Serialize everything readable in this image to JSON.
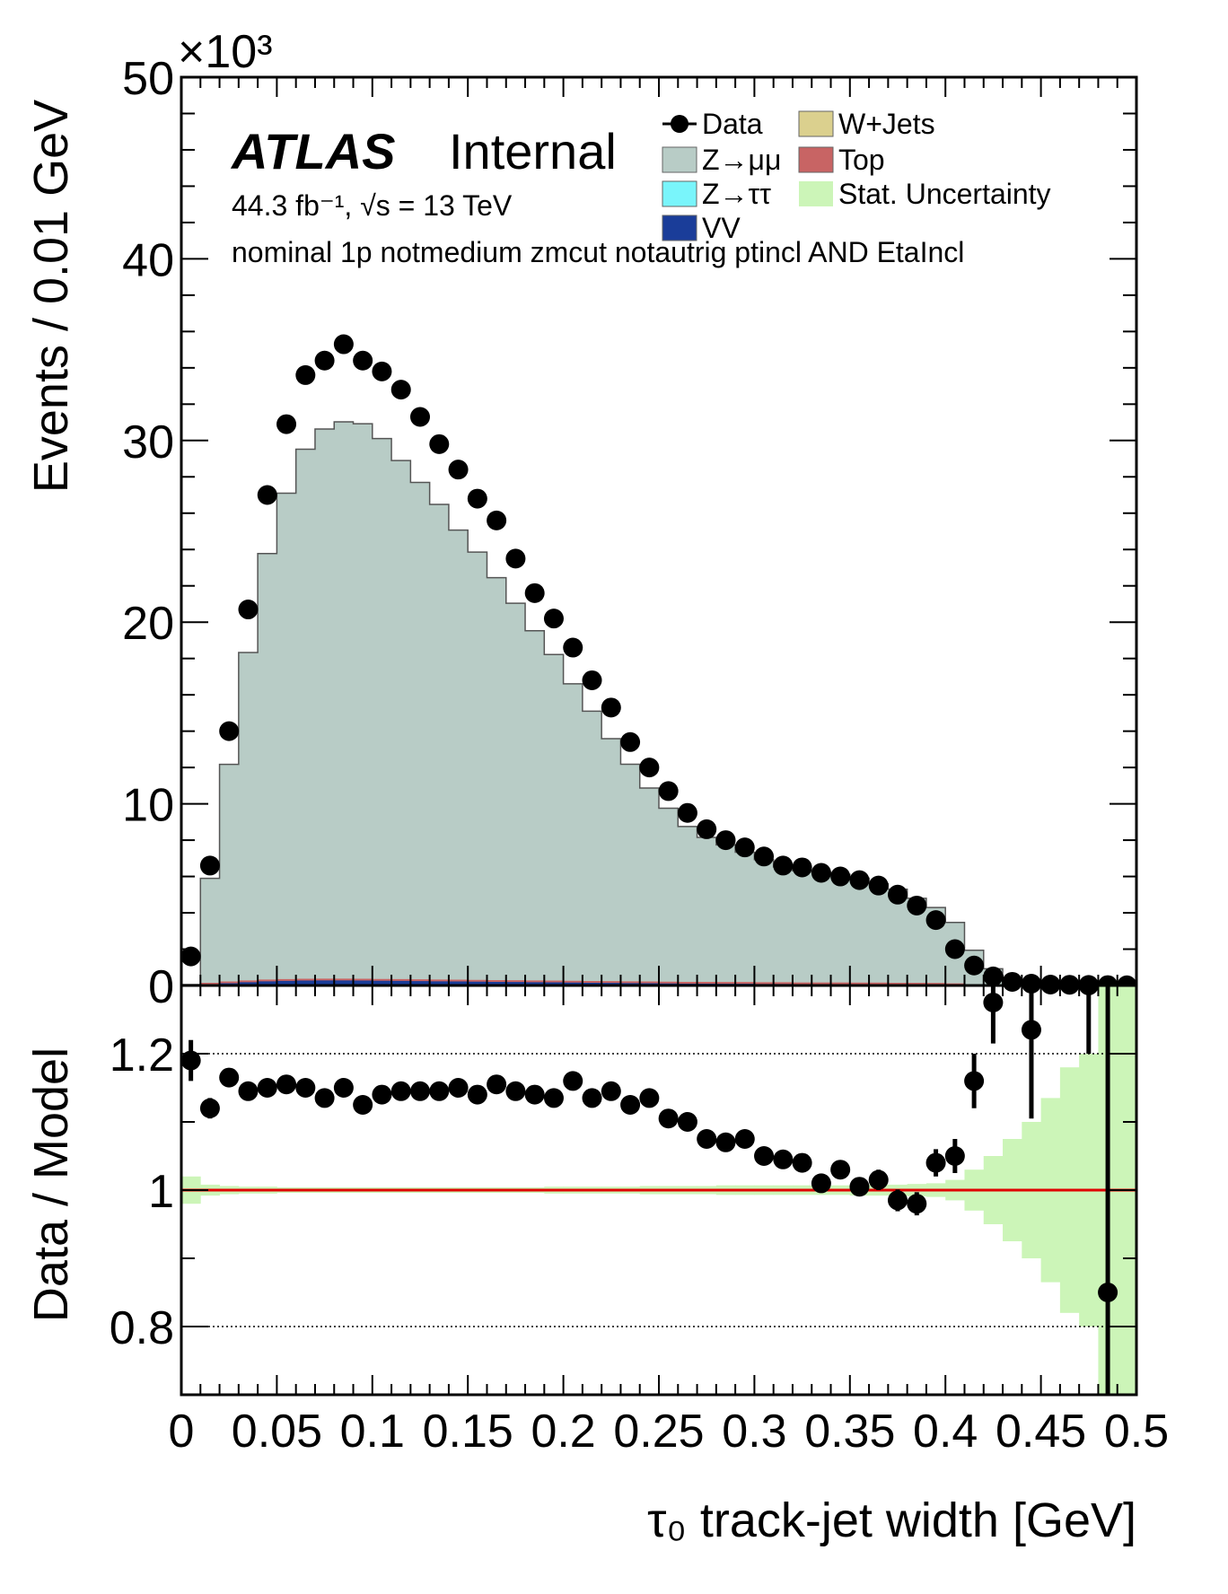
{
  "chart_data": [
    {
      "type": "histogram",
      "panel": "main",
      "exponent_label": "×10³",
      "ylabel": "Events / 0.01 GeV",
      "ylim": [
        0,
        50
      ],
      "yticks": [
        "0",
        "10",
        "20",
        "30",
        "40",
        "50"
      ],
      "xlim": [
        0,
        0.5
      ],
      "bin_width": 0.01,
      "atlas_label": "ATLAS",
      "atlas_status": "Internal",
      "lumi_text": "44.3 fb⁻¹, √s = 13 TeV",
      "selection_text": "nominal 1p notmedium zmcut notautrig ptincl AND EtaIncl",
      "legend_position": "top-right",
      "legend": [
        {
          "label": "Data",
          "kind": "marker",
          "color": "#000000"
        },
        {
          "label": "W+Jets",
          "kind": "box",
          "color": "#dbd08e"
        },
        {
          "label": "Z→μμ",
          "kind": "box",
          "color": "#b8ccc6"
        },
        {
          "label": "Top",
          "kind": "box",
          "color": "#c86464"
        },
        {
          "label": "Z→ττ",
          "kind": "box",
          "color": "#79f5fb"
        },
        {
          "label": "Stat. Uncertainty",
          "kind": "box",
          "color": "#ccf5b8"
        },
        {
          "label": "VV",
          "kind": "box",
          "color": "#1a3d99"
        }
      ],
      "series": [
        {
          "name": "Z→μμ",
          "values": [
            0,
            5.8,
            12.0,
            18.1,
            23.5,
            26.8,
            29.2,
            30.3,
            30.7,
            30.6,
            29.8,
            28.6,
            27.4,
            26.2,
            24.8,
            23.6,
            22.2,
            20.8,
            19.3,
            18.0,
            16.4,
            14.9,
            13.4,
            12.0,
            10.7,
            9.6,
            8.6,
            8.0,
            7.6,
            7.2,
            6.8,
            6.4,
            6.2,
            6.1,
            6.0,
            5.8,
            5.5,
            5.2,
            4.7,
            4.2,
            3.4,
            1.9,
            0.9,
            0.2,
            0.05,
            0.02,
            0.01,
            0.01,
            0.005,
            0.005
          ]
        },
        {
          "name": "VV",
          "values": [
            0.05,
            0.1,
            0.17,
            0.23,
            0.28,
            0.3,
            0.32,
            0.33,
            0.33,
            0.32,
            0.31,
            0.3,
            0.29,
            0.28,
            0.27,
            0.26,
            0.25,
            0.24,
            0.23,
            0.22,
            0.21,
            0.2,
            0.19,
            0.18,
            0.17,
            0.16,
            0.15,
            0.15,
            0.14,
            0.14,
            0.13,
            0.13,
            0.12,
            0.12,
            0.12,
            0.11,
            0.11,
            0.1,
            0.1,
            0.09,
            0.07,
            0.04,
            0.02,
            0.01,
            0.0,
            0.0,
            0.0,
            0.0,
            0.0,
            0.0
          ]
        },
        {
          "name": "Data",
          "x": [
            0.005,
            0.015,
            0.025,
            0.035,
            0.045,
            0.055,
            0.065,
            0.075,
            0.085,
            0.095,
            0.105,
            0.115,
            0.125,
            0.135,
            0.145,
            0.155,
            0.165,
            0.175,
            0.185,
            0.195,
            0.205,
            0.215,
            0.225,
            0.235,
            0.245,
            0.255,
            0.265,
            0.275,
            0.285,
            0.295,
            0.305,
            0.315,
            0.325,
            0.335,
            0.345,
            0.355,
            0.365,
            0.375,
            0.385,
            0.395,
            0.405,
            0.415,
            0.425,
            0.435,
            0.445,
            0.455,
            0.465,
            0.475,
            0.485,
            0.495
          ],
          "values": [
            1.6,
            6.6,
            14.0,
            20.7,
            27.0,
            30.9,
            33.6,
            34.4,
            35.3,
            34.4,
            33.8,
            32.8,
            31.3,
            29.8,
            28.4,
            26.8,
            25.6,
            23.5,
            21.6,
            20.2,
            18.6,
            16.8,
            15.3,
            13.4,
            12.0,
            10.7,
            9.5,
            8.6,
            8.0,
            7.6,
            7.1,
            6.6,
            6.5,
            6.2,
            6.0,
            5.8,
            5.5,
            5.0,
            4.4,
            3.6,
            2.0,
            1.1,
            0.5,
            0.2,
            0.1,
            0.05,
            0.04,
            0.03,
            0.02,
            0.01
          ]
        }
      ]
    },
    {
      "type": "scatter",
      "panel": "ratio",
      "ylabel": "Data / Model",
      "xlabel": "τ₀ track-jet width [GeV]",
      "ylim": [
        0.7,
        1.3
      ],
      "yticks": [
        "0.8",
        "1",
        "1.2"
      ],
      "xlim": [
        0,
        0.5
      ],
      "xticks": [
        "0",
        "0.05",
        "0.1",
        "0.15",
        "0.2",
        "0.25",
        "0.3",
        "0.35",
        "0.4",
        "0.45",
        "0.5"
      ],
      "reference_lines": [
        0.8,
        1.2
      ],
      "reference_line_color": "#e00000",
      "x": [
        0.005,
        0.015,
        0.025,
        0.035,
        0.045,
        0.055,
        0.065,
        0.075,
        0.085,
        0.095,
        0.105,
        0.115,
        0.125,
        0.135,
        0.145,
        0.155,
        0.165,
        0.175,
        0.185,
        0.195,
        0.205,
        0.215,
        0.225,
        0.235,
        0.245,
        0.255,
        0.265,
        0.275,
        0.285,
        0.295,
        0.305,
        0.315,
        0.325,
        0.335,
        0.345,
        0.355,
        0.365,
        0.375,
        0.385,
        0.395,
        0.405,
        0.415,
        0.425,
        0.445,
        0.475,
        0.485
      ],
      "values": [
        1.19,
        1.12,
        1.165,
        1.145,
        1.15,
        1.155,
        1.15,
        1.135,
        1.15,
        1.125,
        1.14,
        1.145,
        1.145,
        1.145,
        1.15,
        1.14,
        1.155,
        1.145,
        1.14,
        1.135,
        1.16,
        1.135,
        1.145,
        1.125,
        1.135,
        1.105,
        1.1,
        1.075,
        1.07,
        1.075,
        1.05,
        1.045,
        1.04,
        1.01,
        1.03,
        1.005,
        1.015,
        0.985,
        0.98,
        1.04,
        1.05,
        1.16,
        1.275,
        1.235,
        1.3,
        0.85
      ],
      "errors": [
        0.03,
        0.015,
        0.01,
        0.01,
        0.008,
        0.007,
        0.007,
        0.007,
        0.007,
        0.007,
        0.007,
        0.007,
        0.007,
        0.007,
        0.007,
        0.007,
        0.007,
        0.008,
        0.008,
        0.008,
        0.009,
        0.009,
        0.01,
        0.01,
        0.01,
        0.011,
        0.011,
        0.012,
        0.012,
        0.012,
        0.013,
        0.013,
        0.013,
        0.014,
        0.014,
        0.014,
        0.015,
        0.016,
        0.017,
        0.02,
        0.025,
        0.04,
        0.06,
        0.13,
        0.1,
        0.45
      ],
      "stat_uncertainty": [
        0.02,
        0.008,
        0.006,
        0.005,
        0.005,
        0.004,
        0.004,
        0.004,
        0.004,
        0.004,
        0.004,
        0.004,
        0.004,
        0.004,
        0.004,
        0.004,
        0.004,
        0.004,
        0.004,
        0.005,
        0.005,
        0.005,
        0.005,
        0.005,
        0.006,
        0.006,
        0.006,
        0.006,
        0.007,
        0.007,
        0.007,
        0.007,
        0.007,
        0.007,
        0.007,
        0.008,
        0.008,
        0.008,
        0.009,
        0.01,
        0.015,
        0.03,
        0.05,
        0.075,
        0.1,
        0.135,
        0.18,
        0.2,
        0.3,
        0.4
      ]
    }
  ]
}
